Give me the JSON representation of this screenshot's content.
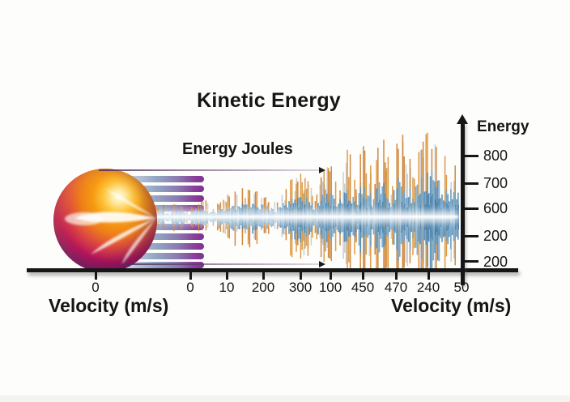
{
  "title": "Kinetic Energy",
  "annotation": {
    "label": "Energy Joules"
  },
  "x_axis": {
    "label_left": "Velocity (m/s)",
    "label_right": "Velocity (m/s)",
    "ticks": [
      "0",
      "0",
      "10",
      "200",
      "300",
      "100",
      "450",
      "470",
      "240",
      "50"
    ]
  },
  "y_axis": {
    "label": "Energy",
    "ticks": [
      "800",
      "700",
      "600",
      "200",
      "200"
    ]
  },
  "colors": {
    "background": "#fdfdfc",
    "axis": "#161616",
    "ball_orange": "#f59b13",
    "ball_crimson": "#c2185b",
    "ball_purple": "#6e2a8c",
    "bar_purple": "#8a3f9a",
    "bar_steel": "#93a7c4",
    "wave_blue": "#4e89b6",
    "wave_blue_dark": "#35719f",
    "wave_orange": "#d88a28",
    "wave_gray": "#8d939c"
  },
  "chart_data": {
    "type": "line",
    "title": "Kinetic Energy",
    "xlabel": "Velocity (m/s)",
    "ylabel": "Energy",
    "x_tick_labels": [
      "0",
      "0",
      "10",
      "200",
      "300",
      "100",
      "450",
      "470",
      "240",
      "50"
    ],
    "y_tick_labels": [
      "800",
      "700",
      "600",
      "200",
      "200"
    ],
    "grid": false,
    "legend": "none",
    "series": [
      {
        "name": "Energy Joules",
        "style": "noisy-waveform",
        "envelope_relative_amplitude": [
          0.05,
          0.08,
          0.14,
          0.22,
          0.34,
          0.46,
          0.58,
          0.72,
          0.86,
          1.0
        ]
      }
    ]
  }
}
